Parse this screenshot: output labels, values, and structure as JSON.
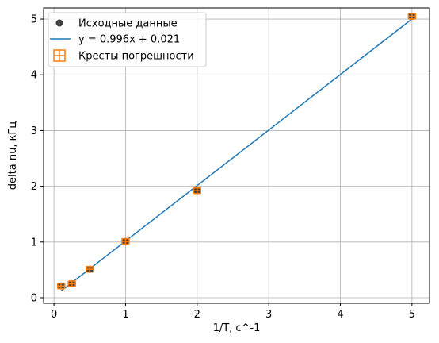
{
  "chart_data": {
    "type": "scatter",
    "xlabel": "1/T, с^-1",
    "ylabel": "delta nu, кГц",
    "xlim": [
      -0.145,
      5.245
    ],
    "ylim": [
      -0.1,
      5.2
    ],
    "xticks": [
      0,
      1,
      2,
      3,
      4,
      5
    ],
    "yticks": [
      0,
      1,
      2,
      3,
      4,
      5
    ],
    "grid": true,
    "legend_position": "top-left",
    "series": [
      {
        "name": "Исходные данные",
        "kind": "scatter",
        "color": "#404040",
        "x": [
          0.1,
          0.25,
          0.5,
          1.0,
          2.0,
          5.0
        ],
        "y": [
          0.21,
          0.25,
          0.51,
          1.01,
          1.92,
          5.05
        ]
      },
      {
        "name": "y = 0.996x + 0.021",
        "kind": "line",
        "color": "#1f77b4",
        "slope": 0.996,
        "intercept": 0.021,
        "x_range": [
          0.1,
          5.0
        ]
      },
      {
        "name": "Кресты погрешности",
        "kind": "errorbar",
        "color": "#ff7f0e",
        "x": [
          0.1,
          0.25,
          0.5,
          1.0,
          2.0,
          5.0
        ],
        "y": [
          0.21,
          0.25,
          0.51,
          1.01,
          1.92,
          5.05
        ],
        "xerr": [
          0.05,
          0.05,
          0.05,
          0.05,
          0.05,
          0.05
        ],
        "yerr": [
          0.05,
          0.05,
          0.05,
          0.05,
          0.05,
          0.05
        ]
      }
    ]
  }
}
